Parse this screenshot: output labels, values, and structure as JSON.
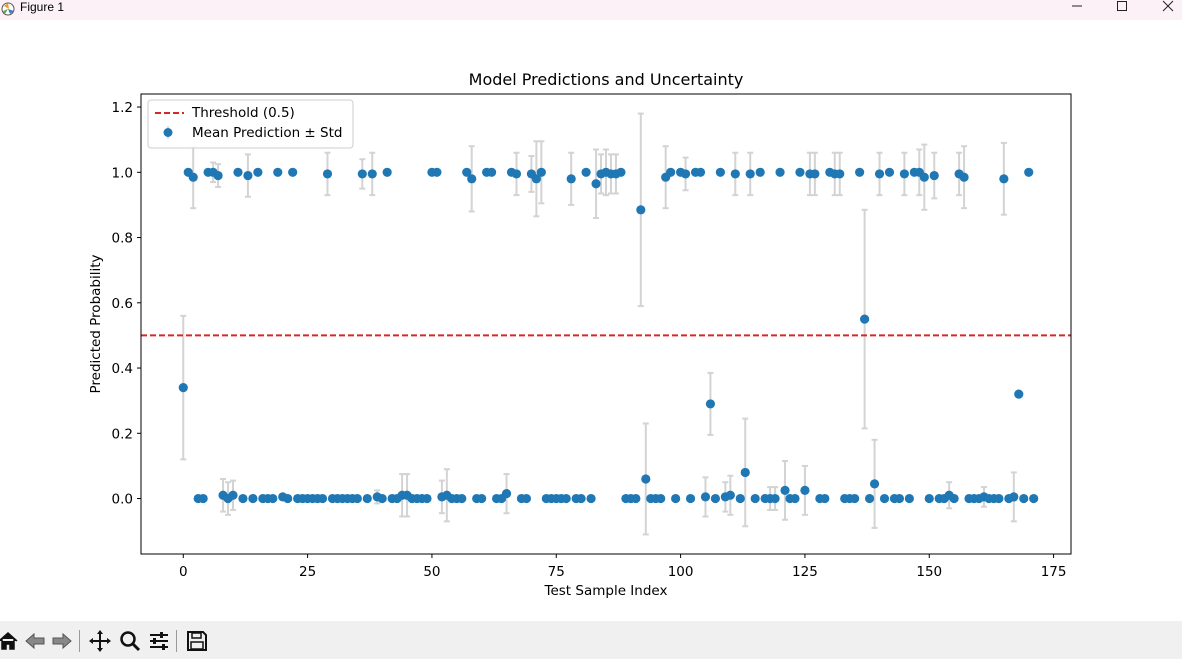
{
  "window": {
    "title": "Figure 1",
    "controls": [
      "minimize-icon",
      "maximize-icon",
      "close-icon"
    ]
  },
  "toolbar": {
    "buttons": [
      "home-icon",
      "back-icon",
      "forward-icon",
      "pan-icon",
      "zoom-icon",
      "configure-subplots-icon",
      "save-icon"
    ]
  },
  "colors": {
    "points": "#1f77b4",
    "errorbars": "#d3d3d3",
    "threshold": "#d62728"
  },
  "chart_data": {
    "type": "scatter",
    "title": "Model Predictions and Uncertainty",
    "xlabel": "Test Sample Index",
    "ylabel": "Predicted Probability",
    "xlim": [
      -8.5,
      178.5
    ],
    "ylim": [
      -0.17,
      1.24
    ],
    "xticks": [
      0,
      25,
      50,
      75,
      100,
      125,
      150,
      175
    ],
    "yticks": [
      0.0,
      0.2,
      0.4,
      0.6,
      0.8,
      1.0,
      1.2
    ],
    "ytick_labels": [
      "0.0",
      "0.2",
      "0.4",
      "0.6",
      "0.8",
      "1.0",
      "1.2"
    ],
    "grid": false,
    "legend": {
      "placement": "top-left",
      "entries": [
        "Threshold (0.5)",
        "Mean Prediction ± Std"
      ]
    },
    "threshold": {
      "name": "Threshold (0.5)",
      "y": 0.5,
      "style": "dashed"
    },
    "series": [
      {
        "name": "Mean Prediction ± Std",
        "points": [
          [
            0,
            0.34,
            0.22
          ],
          [
            1,
            1.0,
            0
          ],
          [
            2,
            0.985,
            0.095
          ],
          [
            3,
            0,
            0
          ],
          [
            4,
            0,
            0
          ],
          [
            5,
            1.0,
            0
          ],
          [
            6,
            1.0,
            0.03
          ],
          [
            7,
            0.99,
            0.035
          ],
          [
            8,
            0.01,
            0.05
          ],
          [
            9,
            0,
            0.05
          ],
          [
            10,
            0.01,
            0.045
          ],
          [
            11,
            1.0,
            0
          ],
          [
            12,
            0,
            0
          ],
          [
            13,
            0.99,
            0.065
          ],
          [
            14,
            0,
            0
          ],
          [
            15,
            1.0,
            0
          ],
          [
            16,
            0,
            0
          ],
          [
            17,
            0,
            0
          ],
          [
            18,
            0,
            0
          ],
          [
            19,
            1.0,
            0
          ],
          [
            20,
            0.005,
            0
          ],
          [
            21,
            0,
            0
          ],
          [
            22,
            1.0,
            0
          ],
          [
            23,
            0,
            0
          ],
          [
            24,
            0,
            0
          ],
          [
            25,
            0,
            0
          ],
          [
            26,
            0,
            0
          ],
          [
            27,
            0,
            0
          ],
          [
            28,
            0,
            0
          ],
          [
            29,
            0.995,
            0.065
          ],
          [
            30,
            0,
            0
          ],
          [
            31,
            0,
            0
          ],
          [
            32,
            0,
            0
          ],
          [
            33,
            0,
            0
          ],
          [
            34,
            0,
            0
          ],
          [
            35,
            0,
            0
          ],
          [
            36,
            0.995,
            0.045
          ],
          [
            37,
            0,
            0
          ],
          [
            38,
            0.995,
            0.065
          ],
          [
            39,
            0.005,
            0.02
          ],
          [
            40,
            0,
            0
          ],
          [
            41,
            1.0,
            0
          ],
          [
            42,
            0,
            0
          ],
          [
            43,
            0,
            0
          ],
          [
            44,
            0.01,
            0.065
          ],
          [
            45,
            0.01,
            0.065
          ],
          [
            46,
            0,
            0
          ],
          [
            47,
            0,
            0
          ],
          [
            48,
            0,
            0
          ],
          [
            49,
            0,
            0
          ],
          [
            50,
            1.0,
            0
          ],
          [
            51,
            1.0,
            0
          ],
          [
            52,
            0.005,
            0.05
          ],
          [
            53,
            0.01,
            0.08
          ],
          [
            54,
            0,
            0
          ],
          [
            55,
            0,
            0
          ],
          [
            56,
            0,
            0
          ],
          [
            57,
            1.0,
            0
          ],
          [
            58,
            0.98,
            0.1
          ],
          [
            59,
            0,
            0
          ],
          [
            60,
            0,
            0
          ],
          [
            61,
            1.0,
            0
          ],
          [
            62,
            1.0,
            0
          ],
          [
            63,
            0,
            0
          ],
          [
            64,
            0,
            0
          ],
          [
            65,
            0.015,
            0.06
          ],
          [
            66,
            1.0,
            0
          ],
          [
            67,
            0.995,
            0.065
          ],
          [
            68,
            0,
            0
          ],
          [
            69,
            0,
            0
          ],
          [
            70,
            0.995,
            0.055
          ],
          [
            71,
            0.98,
            0.115
          ],
          [
            72,
            1.0,
            0.095
          ],
          [
            73,
            0,
            0
          ],
          [
            74,
            0,
            0
          ],
          [
            75,
            0,
            0
          ],
          [
            76,
            0,
            0
          ],
          [
            77,
            0,
            0
          ],
          [
            78,
            0.98,
            0.08
          ],
          [
            79,
            0,
            0
          ],
          [
            80,
            0,
            0
          ],
          [
            81,
            1.0,
            0
          ],
          [
            82,
            0,
            0
          ],
          [
            83,
            0.965,
            0.105
          ],
          [
            84,
            0.995,
            0.06
          ],
          [
            85,
            1.0,
            0.07
          ],
          [
            86,
            0.995,
            0.06
          ],
          [
            87,
            0.995,
            0.06
          ],
          [
            88,
            1.0,
            0
          ],
          [
            89,
            0,
            0
          ],
          [
            90,
            0,
            0
          ],
          [
            91,
            0,
            0
          ],
          [
            92,
            0.885,
            0.295
          ],
          [
            93,
            0.06,
            0.17
          ],
          [
            94,
            0,
            0
          ],
          [
            95,
            0,
            0
          ],
          [
            96,
            0,
            0
          ],
          [
            97,
            0.985,
            0.095
          ],
          [
            98,
            1.0,
            0
          ],
          [
            99,
            0,
            0
          ],
          [
            100,
            1.0,
            0
          ],
          [
            101,
            0.995,
            0.05
          ],
          [
            102,
            0,
            0
          ],
          [
            103,
            1.0,
            0
          ],
          [
            104,
            1.0,
            0
          ],
          [
            105,
            0.005,
            0.06
          ],
          [
            106,
            0.29,
            0.095
          ],
          [
            107,
            0,
            0
          ],
          [
            108,
            1.0,
            0
          ],
          [
            109,
            0.005,
            0.045
          ],
          [
            110,
            0.01,
            0.06
          ],
          [
            111,
            0.995,
            0.065
          ],
          [
            112,
            0,
            0
          ],
          [
            113,
            0.08,
            0.165
          ],
          [
            114,
            0.995,
            0.065
          ],
          [
            115,
            0,
            0
          ],
          [
            116,
            1.0,
            0
          ],
          [
            117,
            0,
            0
          ],
          [
            118,
            0,
            0.035
          ],
          [
            119,
            0,
            0.035
          ],
          [
            120,
            1.0,
            0
          ],
          [
            121,
            0.025,
            0.09
          ],
          [
            122,
            0,
            0
          ],
          [
            123,
            0,
            0
          ],
          [
            124,
            1.0,
            0
          ],
          [
            125,
            0.025,
            0.075
          ],
          [
            126,
            0.995,
            0.065
          ],
          [
            127,
            0.995,
            0.065
          ],
          [
            128,
            0,
            0
          ],
          [
            129,
            0,
            0
          ],
          [
            130,
            1.0,
            0
          ],
          [
            131,
            0.995,
            0.065
          ],
          [
            132,
            0.995,
            0.065
          ],
          [
            133,
            0,
            0
          ],
          [
            134,
            0,
            0
          ],
          [
            135,
            0,
            0
          ],
          [
            136,
            1.0,
            0
          ],
          [
            137,
            0.55,
            0.335
          ],
          [
            138,
            0,
            0
          ],
          [
            139,
            0.045,
            0.135
          ],
          [
            140,
            0.995,
            0.065
          ],
          [
            141,
            0,
            0
          ],
          [
            142,
            1.0,
            0
          ],
          [
            143,
            0,
            0
          ],
          [
            144,
            0,
            0
          ],
          [
            145,
            0.995,
            0.065
          ],
          [
            146,
            0,
            0
          ],
          [
            147,
            1.0,
            0
          ],
          [
            148,
            1.0,
            0.07
          ],
          [
            149,
            0.985,
            0.1
          ],
          [
            150,
            0,
            0
          ],
          [
            151,
            0.99,
            0.07
          ],
          [
            152,
            0,
            0
          ],
          [
            153,
            0,
            0
          ],
          [
            154,
            0.01,
            0.04
          ],
          [
            155,
            0,
            0
          ],
          [
            156,
            0.995,
            0.065
          ],
          [
            157,
            0.985,
            0.095
          ],
          [
            158,
            0,
            0
          ],
          [
            159,
            0,
            0
          ],
          [
            160,
            0,
            0
          ],
          [
            161,
            0.005,
            0.03
          ],
          [
            162,
            0,
            0
          ],
          [
            163,
            0,
            0
          ],
          [
            164,
            0,
            0
          ],
          [
            165,
            0.98,
            0.11
          ],
          [
            166,
            0,
            0
          ],
          [
            167,
            0.005,
            0.075
          ],
          [
            168,
            0.32,
            0
          ],
          [
            169,
            0,
            0
          ],
          [
            170,
            1.0,
            0
          ],
          [
            171,
            0,
            0
          ]
        ]
      }
    ]
  }
}
